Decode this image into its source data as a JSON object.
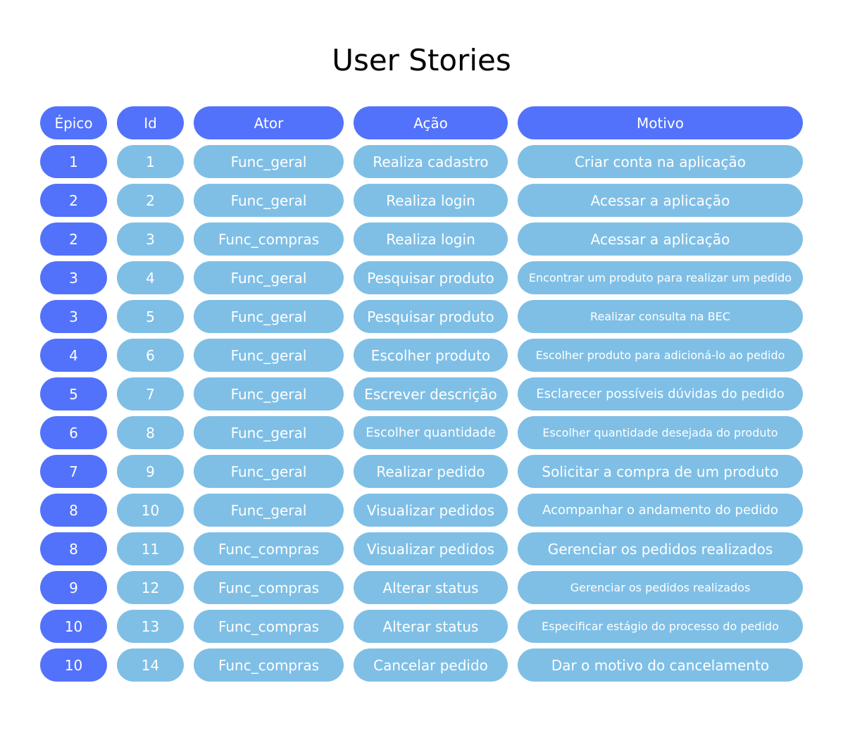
{
  "title": "User Stories",
  "colors": {
    "header": "#5272fb",
    "epic": "#5272fb",
    "cell": "#7fbfe6",
    "text": "#ffffff"
  },
  "headers": [
    "Épico",
    "Id",
    "Ator",
    "Ação",
    "Motivo"
  ],
  "rows": [
    [
      "1",
      "1",
      "Func_geral",
      "Realiza cadastro",
      "Criar conta na aplicação"
    ],
    [
      "2",
      "2",
      "Func_geral",
      "Realiza login",
      "Acessar a aplicação"
    ],
    [
      "2",
      "3",
      "Func_compras",
      "Realiza login",
      "Acessar a aplicação"
    ],
    [
      "3",
      "4",
      "Func_geral",
      "Pesquisar produto",
      "Encontrar um produto para realizar um pedido"
    ],
    [
      "3",
      "5",
      "Func_geral",
      "Pesquisar produto",
      "Realizar consulta na BEC"
    ],
    [
      "4",
      "6",
      "Func_geral",
      "Escolher produto",
      "Escolher produto para adicioná-lo ao pedido"
    ],
    [
      "5",
      "7",
      "Func_geral",
      "Escrever descrição",
      "Esclarecer possíveis dúvidas do pedido"
    ],
    [
      "6",
      "8",
      "Func_geral",
      "Escolher quantidade",
      "Escolher quantidade desejada do produto"
    ],
    [
      "7",
      "9",
      "Func_geral",
      "Realizar pedido",
      "Solicitar a compra de um produto"
    ],
    [
      "8",
      "10",
      "Func_geral",
      "Visualizar pedidos",
      "Acompanhar o andamento do pedido"
    ],
    [
      "8",
      "11",
      "Func_compras",
      "Visualizar pedidos",
      "Gerenciar os pedidos realizados"
    ],
    [
      "9",
      "12",
      "Func_compras",
      "Alterar status",
      "Gerenciar os pedidos realizados"
    ],
    [
      "10",
      "13",
      "Func_compras",
      "Alterar status",
      "Especificar estágio do processo do pedido"
    ],
    [
      "10",
      "14",
      "Func_compras",
      "Cancelar pedido",
      "Dar o motivo do cancelamento"
    ]
  ]
}
